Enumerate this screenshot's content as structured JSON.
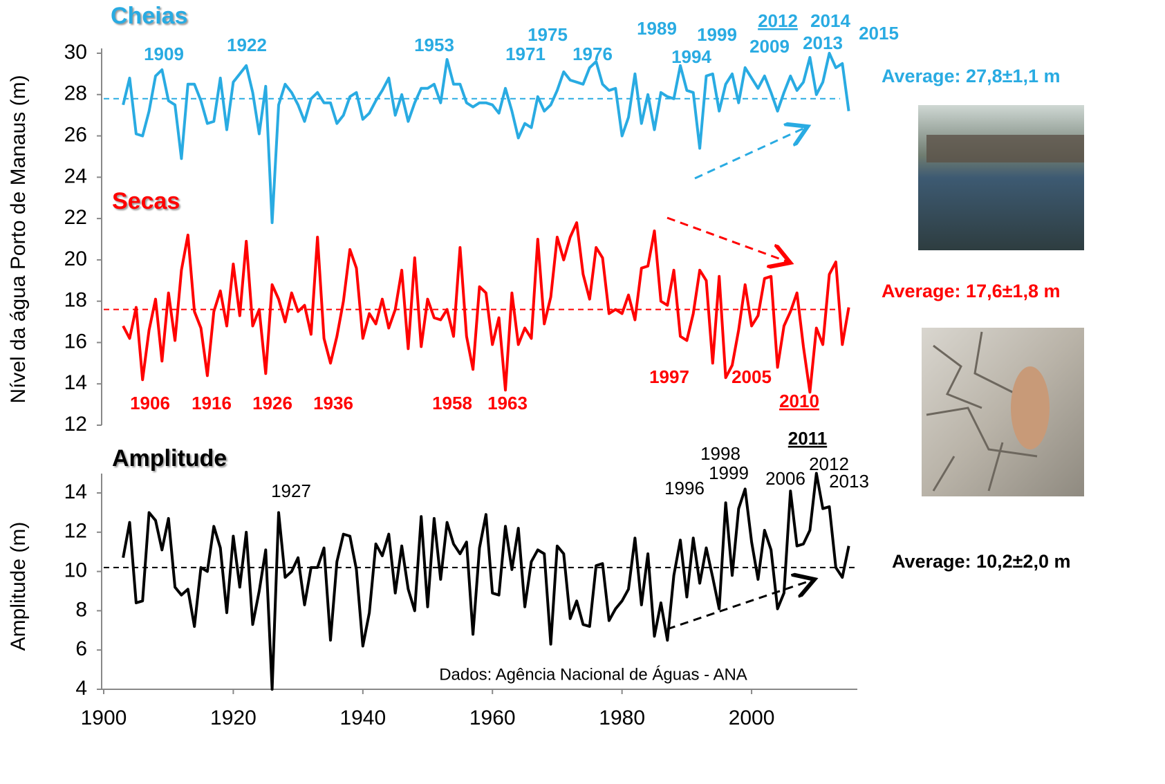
{
  "chart_data": [
    {
      "type": "line",
      "y_label": "Nível da água Porto de Manaus (m)",
      "x": [
        1903,
        1904,
        1905,
        1906,
        1907,
        1908,
        1909,
        1910,
        1911,
        1912,
        1913,
        1914,
        1915,
        1916,
        1917,
        1918,
        1919,
        1920,
        1921,
        1922,
        1923,
        1924,
        1925,
        1926,
        1927,
        1928,
        1929,
        1930,
        1931,
        1932,
        1933,
        1934,
        1935,
        1936,
        1937,
        1938,
        1939,
        1940,
        1941,
        1942,
        1943,
        1944,
        1945,
        1946,
        1947,
        1948,
        1949,
        1950,
        1951,
        1952,
        1953,
        1954,
        1955,
        1956,
        1957,
        1958,
        1959,
        1960,
        1961,
        1962,
        1963,
        1964,
        1965,
        1966,
        1967,
        1968,
        1969,
        1970,
        1971,
        1972,
        1973,
        1974,
        1975,
        1976,
        1977,
        1978,
        1979,
        1980,
        1981,
        1982,
        1983,
        1984,
        1985,
        1986,
        1987,
        1988,
        1989,
        1990,
        1991,
        1992,
        1993,
        1994,
        1995,
        1996,
        1997,
        1998,
        1999,
        2000,
        2001,
        2002,
        2003,
        2004,
        2005,
        2006,
        2007,
        2008,
        2009,
        2010,
        2011,
        2012,
        2013,
        2014,
        2015
      ],
      "xlim": [
        1900,
        2016
      ],
      "ylim": [
        12,
        30
      ],
      "yticks": [
        12,
        14,
        16,
        18,
        20,
        22,
        24,
        26,
        28,
        30
      ],
      "series": [
        {
          "name": "Cheias",
          "color": "#29abe2",
          "values": [
            27.5,
            28.8,
            26.1,
            26.0,
            27.2,
            28.9,
            29.2,
            27.7,
            27.5,
            24.9,
            28.5,
            28.5,
            27.7,
            26.6,
            26.7,
            28.8,
            26.3,
            28.6,
            29.0,
            29.4,
            28.1,
            26.1,
            28.4,
            21.8,
            27.5,
            28.5,
            28.1,
            27.5,
            26.7,
            27.8,
            28.1,
            27.6,
            27.6,
            26.6,
            27.0,
            27.9,
            28.1,
            26.8,
            27.1,
            27.7,
            28.2,
            28.8,
            27.0,
            28.0,
            26.7,
            27.6,
            28.3,
            28.3,
            28.5,
            27.6,
            29.7,
            28.5,
            28.5,
            27.6,
            27.4,
            27.6,
            27.6,
            27.5,
            27.1,
            28.3,
            27.2,
            25.9,
            26.6,
            26.4,
            27.9,
            27.2,
            27.5,
            28.2,
            29.1,
            28.7,
            28.6,
            28.5,
            29.3,
            29.6,
            28.5,
            28.2,
            28.3,
            26.0,
            26.9,
            29.0,
            26.6,
            28.0,
            26.3,
            28.1,
            27.9,
            27.8,
            29.4,
            28.2,
            28.1,
            25.4,
            28.9,
            29.0,
            27.2,
            28.5,
            29.0,
            27.6,
            29.3,
            28.8,
            28.3,
            28.9,
            28.1,
            27.2,
            28.1,
            28.9,
            28.2,
            28.6,
            29.8,
            28.0,
            28.6,
            30.0,
            29.3,
            29.5,
            27.2
          ],
          "average": 27.8,
          "average_label": "Average: 27,8±1,1 m",
          "annotations": [
            "1909",
            "1922",
            "1953",
            "1971",
            "1975",
            "1976",
            "1989",
            "1994",
            "1999",
            "2009",
            "2012",
            "2014",
            "2013",
            "2015"
          ]
        },
        {
          "name": "Secas",
          "color": "#ff0000",
          "values": [
            16.8,
            16.2,
            17.7,
            14.2,
            16.6,
            18.1,
            15.1,
            18.4,
            16.1,
            19.5,
            21.2,
            17.5,
            16.7,
            14.4,
            17.5,
            18.5,
            16.8,
            19.8,
            17.3,
            20.9,
            16.8,
            17.6,
            14.5,
            18.8,
            18.1,
            17.0,
            18.4,
            17.5,
            17.8,
            16.4,
            21.1,
            16.2,
            15.0,
            16.3,
            18.0,
            20.5,
            19.6,
            16.2,
            17.4,
            16.9,
            18.1,
            16.7,
            17.6,
            19.5,
            15.7,
            20.1,
            15.8,
            18.1,
            17.2,
            17.1,
            17.6,
            16.3,
            20.6,
            16.3,
            14.7,
            18.7,
            18.4,
            15.9,
            17.2,
            13.7,
            18.4,
            15.9,
            16.7,
            16.2,
            21.0,
            16.9,
            18.2,
            21.1,
            20.0,
            21.1,
            21.8,
            19.3,
            18.1,
            20.6,
            20.1,
            17.4,
            17.6,
            17.4,
            18.3,
            17.1,
            19.6,
            19.7,
            21.4,
            18.0,
            17.8,
            19.5,
            16.3,
            16.1,
            17.4,
            19.5,
            19.0,
            15.0,
            19.2,
            14.3,
            14.9,
            16.6,
            18.8,
            16.8,
            17.3,
            19.1,
            19.2,
            14.8,
            16.8,
            17.5,
            18.4,
            15.8,
            13.6,
            16.7,
            15.9,
            19.3,
            19.9,
            15.9,
            17.7
          ],
          "average": 17.6,
          "average_label": "Average: 17,6±1,8 m",
          "annotations": [
            "1906",
            "1916",
            "1926",
            "1936",
            "1958",
            "1963",
            "1997",
            "2005",
            "2010"
          ]
        }
      ]
    },
    {
      "type": "line",
      "y_label": "Amplitude (m)",
      "source": "Dados: Agência Nacional de Águas - ANA",
      "x": [
        1903,
        1904,
        1905,
        1906,
        1907,
        1908,
        1909,
        1910,
        1911,
        1912,
        1913,
        1914,
        1915,
        1916,
        1917,
        1918,
        1919,
        1920,
        1921,
        1922,
        1923,
        1924,
        1925,
        1926,
        1927,
        1928,
        1929,
        1930,
        1931,
        1932,
        1933,
        1934,
        1935,
        1936,
        1937,
        1938,
        1939,
        1940,
        1941,
        1942,
        1943,
        1944,
        1945,
        1946,
        1947,
        1948,
        1949,
        1950,
        1951,
        1952,
        1953,
        1954,
        1955,
        1956,
        1957,
        1958,
        1959,
        1960,
        1961,
        1962,
        1963,
        1964,
        1965,
        1966,
        1967,
        1968,
        1969,
        1970,
        1971,
        1972,
        1973,
        1974,
        1975,
        1976,
        1977,
        1978,
        1979,
        1980,
        1981,
        1982,
        1983,
        1984,
        1985,
        1986,
        1987,
        1988,
        1989,
        1990,
        1991,
        1992,
        1993,
        1994,
        1995,
        1996,
        1997,
        1998,
        1999,
        2000,
        2001,
        2002,
        2003,
        2004,
        2005,
        2006,
        2007,
        2008,
        2009,
        2010,
        2011,
        2012,
        2013,
        2014,
        2015
      ],
      "xlim": [
        1900,
        2016
      ],
      "xticks": [
        1900,
        1920,
        1940,
        1960,
        1980,
        2000
      ],
      "ylim": [
        4,
        15
      ],
      "yticks": [
        4,
        6,
        8,
        10,
        12,
        14
      ],
      "series": [
        {
          "name": "Amplitude",
          "color": "#000000",
          "values": [
            10.7,
            12.5,
            8.4,
            8.5,
            13.0,
            12.6,
            11.1,
            12.7,
            9.2,
            8.8,
            9.1,
            7.2,
            10.2,
            10.0,
            12.3,
            11.2,
            7.9,
            11.8,
            9.2,
            12.0,
            7.3,
            9.0,
            11.1,
            4.0,
            13.0,
            9.7,
            10.0,
            10.7,
            8.3,
            10.2,
            10.2,
            11.2,
            6.5,
            10.5,
            11.9,
            11.8,
            10.1,
            6.2,
            7.9,
            11.4,
            10.8,
            11.9,
            8.9,
            11.3,
            9.1,
            8.0,
            12.8,
            8.2,
            12.7,
            9.6,
            12.5,
            11.4,
            10.9,
            11.5,
            6.8,
            11.2,
            12.9,
            8.9,
            8.8,
            12.3,
            10.1,
            12.2,
            8.2,
            10.5,
            11.1,
            10.9,
            6.3,
            11.3,
            10.9,
            7.6,
            8.5,
            7.3,
            7.2,
            10.3,
            10.4,
            7.5,
            8.1,
            8.5,
            9.1,
            11.7,
            8.3,
            10.9,
            6.7,
            8.4,
            6.5,
            9.8,
            11.6,
            8.7,
            11.7,
            9.4,
            11.2,
            9.7,
            8.1,
            13.5,
            9.8,
            13.2,
            14.2,
            11.5,
            9.6,
            12.1,
            11.1,
            8.1,
            8.9,
            14.1,
            11.3,
            11.4,
            12.1,
            15.0,
            13.2,
            13.3,
            10.2,
            9.7,
            11.3
          ],
          "average": 10.2,
          "average_label": "Average: 10,2±2,0 m",
          "annotations": [
            "1927",
            "1996",
            "1998",
            "1999",
            "2006",
            "2011",
            "2012",
            "2013"
          ]
        }
      ]
    }
  ]
}
